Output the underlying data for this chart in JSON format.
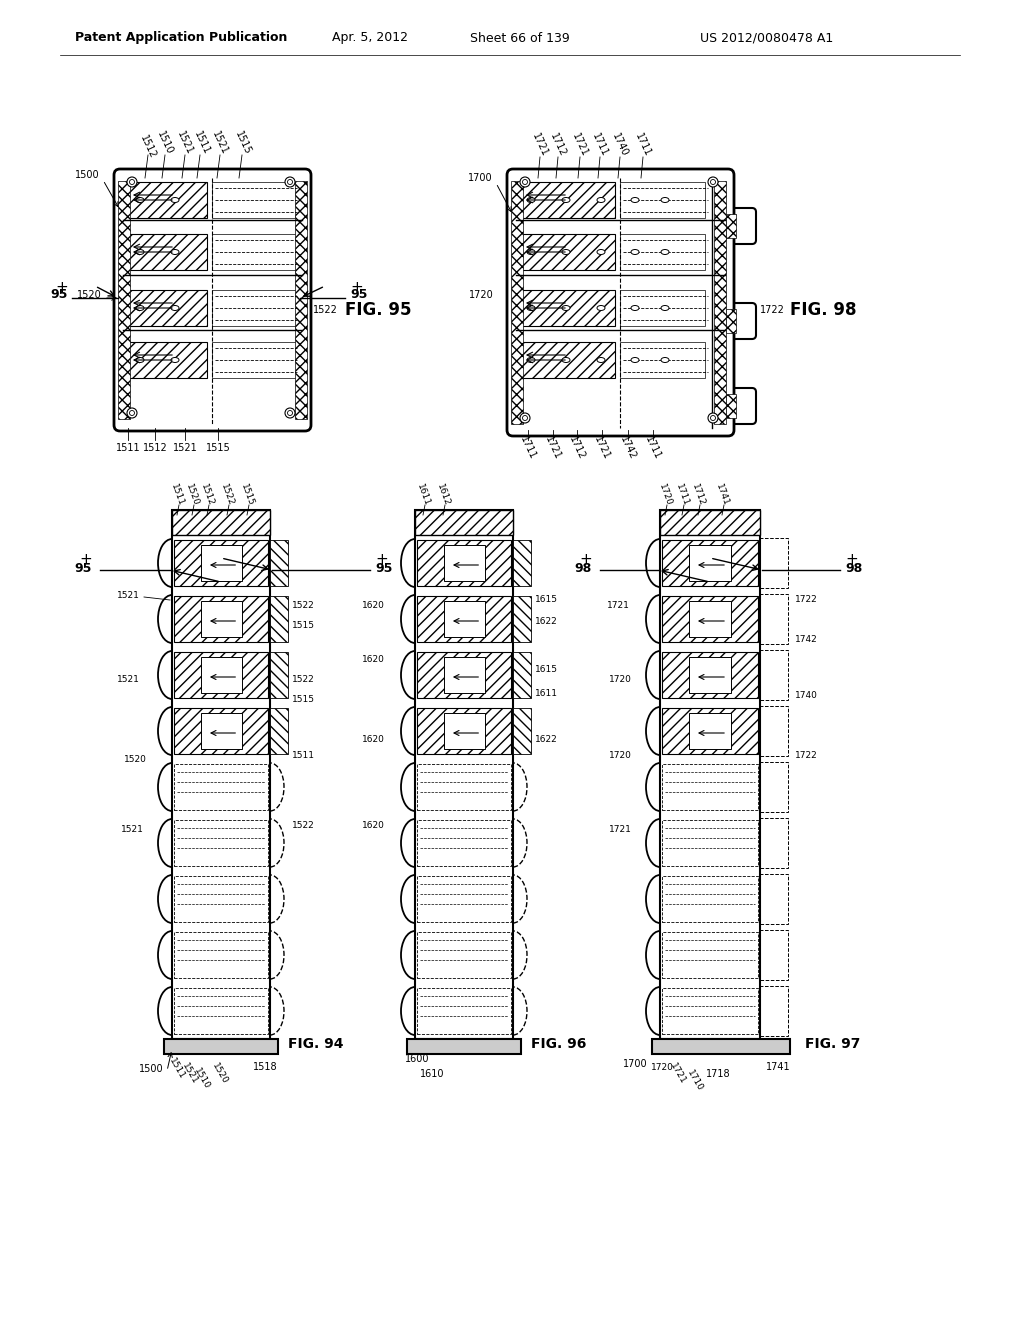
{
  "bg_color": "#ffffff",
  "header_text": "Patent Application Publication",
  "header_date": "Apr. 5, 2012",
  "header_sheet": "Sheet 66 of 139",
  "header_patent": "US 2012/0080478 A1",
  "fig95_label": "FIG. 95",
  "fig94_label": "FIG. 94",
  "fig96_label": "FIG. 96",
  "fig97_label": "FIG. 97",
  "fig98_label": "FIG. 98"
}
